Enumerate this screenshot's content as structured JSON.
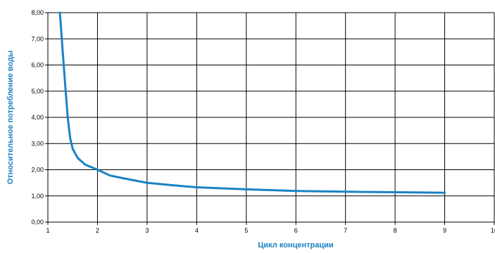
{
  "chart_data": {
    "type": "line",
    "title": "",
    "xlabel": "Цикл концентрации",
    "ylabel": "Относительное потребление воды",
    "xlim": [
      1,
      10
    ],
    "ylim": [
      0,
      8
    ],
    "grid": true,
    "x_ticks": [
      "1",
      "2",
      "3",
      "4",
      "5",
      "6",
      "7",
      "8",
      "9",
      "10"
    ],
    "y_ticks": [
      "0,00",
      "1,00",
      "2,00",
      "3,00",
      "4,00",
      "5,00",
      "6,00",
      "7,00",
      "8,00"
    ],
    "series": [
      {
        "color": "#1a82c4",
        "x": [
          1.24,
          1.25,
          1.3,
          1.35,
          1.4,
          1.45,
          1.5,
          1.6,
          1.75,
          2.0,
          2.25,
          2.5,
          3.0,
          3.5,
          4.0,
          5.0,
          6.0,
          7.0,
          8.0,
          9.0
        ],
        "y": [
          8.0,
          7.8,
          6.5,
          5.2,
          4.0,
          3.2,
          2.8,
          2.45,
          2.2,
          2.0,
          1.78,
          1.68,
          1.5,
          1.41,
          1.33,
          1.25,
          1.19,
          1.16,
          1.14,
          1.12
        ]
      }
    ],
    "grid_color": "#000000",
    "axis_title_color": "#1a82c4"
  }
}
